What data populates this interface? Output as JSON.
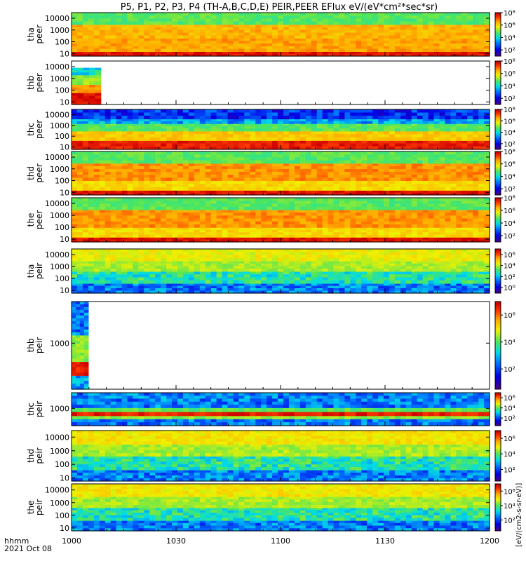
{
  "title": "P5, P1, P2, P3, P4 (TH-A,B,C,D,E) PEIR,PEER EFlux eV/(eV*cm²*sec*sr)",
  "colorbar_unit": "[eV/(cm2-s-sr-eV)]",
  "x_axis": {
    "label_lines": [
      "hhmm",
      "2021 Oct 08"
    ],
    "ticks": [
      "1000",
      "1030",
      "1100",
      "1130",
      "1200"
    ]
  },
  "chart_data": [
    {
      "type": "heatmap",
      "probe": "tha",
      "species": "peer",
      "ylabel": [
        "tha",
        "peer"
      ],
      "yscale": "log",
      "ylim": [
        6,
        30000
      ],
      "yticks": [
        "10",
        "100",
        "1000",
        "10000"
      ],
      "colorbar_ticks": [
        "10²",
        "10⁴",
        "10⁶",
        "10⁸"
      ],
      "colorbar_log_range": [
        1,
        8
      ],
      "xlim": [
        "10:00",
        "12:00"
      ],
      "coverage": [
        0,
        1
      ],
      "feature": "dense high flux (orange) across all energies; saturated red band below ~15 eV",
      "bands": [
        {
          "from": 6,
          "to": 15,
          "level": 0.97
        },
        {
          "from": 15,
          "to": 200,
          "level": 0.8
        },
        {
          "from": 200,
          "to": 3000,
          "level": 0.78
        },
        {
          "from": 3000,
          "to": 30000,
          "level": 0.55
        }
      ]
    },
    {
      "type": "heatmap",
      "probe": "thb",
      "species": "peer",
      "ylabel": [
        "thb",
        "peer"
      ],
      "yscale": "log",
      "ylim": [
        6,
        30000
      ],
      "yticks": [
        "10",
        "100",
        "1000",
        "10000"
      ],
      "colorbar_ticks": [
        "10²",
        "10⁴",
        "10⁶",
        "10⁸"
      ],
      "colorbar_log_range": [
        1,
        8
      ],
      "xlim": [
        "10:00",
        "12:00"
      ],
      "coverage": [
        0,
        0.07
      ],
      "feature": "data only from 10:00 to ~10:08",
      "bands": [
        {
          "from": 6,
          "to": 60,
          "level": 0.98
        },
        {
          "from": 60,
          "to": 300,
          "level": 0.82
        },
        {
          "from": 300,
          "to": 2000,
          "level": 0.6
        },
        {
          "from": 2000,
          "to": 8000,
          "level": 0.45
        }
      ]
    },
    {
      "type": "heatmap",
      "probe": "thc",
      "species": "peer",
      "ylabel": [
        "thc",
        "peer"
      ],
      "yscale": "log",
      "ylim": [
        6,
        30000
      ],
      "yticks": [
        "10",
        "100",
        "1000",
        "10000"
      ],
      "colorbar_ticks": [
        "10²",
        "10⁴",
        "10⁶",
        "10⁸"
      ],
      "colorbar_log_range": [
        1,
        8
      ],
      "xlim": [
        "10:00",
        "12:00"
      ],
      "coverage": [
        0,
        1
      ],
      "feature": "red at low energy grading to noisy blue above ~3000 eV",
      "bands": [
        {
          "from": 6,
          "to": 40,
          "level": 0.95
        },
        {
          "from": 40,
          "to": 300,
          "level": 0.75
        },
        {
          "from": 300,
          "to": 1500,
          "level": 0.55
        },
        {
          "from": 1500,
          "to": 4000,
          "level": 0.35
        },
        {
          "from": 4000,
          "to": 30000,
          "level": 0.2
        }
      ]
    },
    {
      "type": "heatmap",
      "probe": "thd",
      "species": "peer",
      "ylabel": [
        "thd",
        "peer"
      ],
      "yscale": "log",
      "ylim": [
        6,
        30000
      ],
      "yticks": [
        "10",
        "100",
        "1000",
        "10000"
      ],
      "colorbar_ticks": [
        "10²",
        "10⁴",
        "10⁶",
        "10⁸"
      ],
      "colorbar_log_range": [
        1,
        8
      ],
      "xlim": [
        "10:00",
        "12:00"
      ],
      "coverage": [
        0,
        1
      ],
      "feature": "orange/red flux 100-5000 eV; saturated band below ~15 eV",
      "bands": [
        {
          "from": 6,
          "to": 15,
          "level": 0.97
        },
        {
          "from": 15,
          "to": 100,
          "level": 0.72
        },
        {
          "from": 100,
          "to": 3000,
          "level": 0.82
        },
        {
          "from": 3000,
          "to": 30000,
          "level": 0.55
        }
      ]
    },
    {
      "type": "heatmap",
      "probe": "the",
      "species": "peer",
      "ylabel": [
        "the",
        "peer"
      ],
      "yscale": "log",
      "ylim": [
        6,
        30000
      ],
      "yticks": [
        "10",
        "100",
        "1000",
        "10000"
      ],
      "colorbar_ticks": [
        "10²",
        "10⁴",
        "10⁶",
        "10⁸"
      ],
      "colorbar_log_range": [
        1,
        8
      ],
      "xlim": [
        "10:00",
        "12:00"
      ],
      "coverage": [
        0,
        1
      ],
      "feature": "orange/red flux 100-5000 eV; saturated band below ~15 eV",
      "bands": [
        {
          "from": 6,
          "to": 15,
          "level": 0.97
        },
        {
          "from": 15,
          "to": 100,
          "level": 0.72
        },
        {
          "from": 100,
          "to": 3000,
          "level": 0.82
        },
        {
          "from": 3000,
          "to": 30000,
          "level": 0.55
        }
      ]
    },
    {
      "type": "heatmap",
      "probe": "tha",
      "species": "peir",
      "ylabel": [
        "tha",
        "peir"
      ],
      "yscale": "log",
      "ylim": [
        6,
        30000
      ],
      "yticks": [
        "10",
        "100",
        "1000",
        "10000"
      ],
      "colorbar_ticks": [
        "10⁰",
        "10²",
        "10⁴",
        "10⁶"
      ],
      "colorbar_log_range": [
        -1,
        7
      ],
      "xlim": [
        "10:00",
        "12:00"
      ],
      "coverage": [
        0,
        1
      ],
      "feature": "yellow-green flux peaking ~1000-10000 eV; noisy below 100 eV",
      "bands": [
        {
          "from": 6,
          "to": 40,
          "level": 0.3
        },
        {
          "from": 40,
          "to": 400,
          "level": 0.48
        },
        {
          "from": 400,
          "to": 3000,
          "level": 0.62
        },
        {
          "from": 3000,
          "to": 30000,
          "level": 0.68
        }
      ]
    },
    {
      "type": "heatmap",
      "probe": "thb",
      "species": "peir",
      "ylabel": [
        "thb",
        "peir"
      ],
      "yscale": "log",
      "ylim": [
        100,
        8000
      ],
      "yticks": [
        "1000"
      ],
      "colorbar_ticks": [
        "10²",
        "10⁴",
        "10⁶"
      ],
      "colorbar_log_range": [
        0.5,
        7
      ],
      "xlim": [
        "10:00",
        "12:00"
      ],
      "coverage": [
        0,
        0.04
      ],
      "feature": "data only from 10:00 to ~10:05",
      "bands": [
        {
          "from": 100,
          "to": 200,
          "level": 0.35
        },
        {
          "from": 200,
          "to": 400,
          "level": 0.95
        },
        {
          "from": 400,
          "to": 1500,
          "level": 0.6
        },
        {
          "from": 1500,
          "to": 8000,
          "level": 0.3
        }
      ]
    },
    {
      "type": "heatmap",
      "probe": "thc",
      "species": "peir",
      "ylabel": [
        "thc",
        "peir"
      ],
      "yscale": "log",
      "ylim": [
        100,
        8000
      ],
      "yticks": [
        "1000"
      ],
      "colorbar_ticks": [
        "10²",
        "10⁴",
        "10⁶"
      ],
      "colorbar_log_range": [
        0.5,
        7
      ],
      "xlim": [
        "10:00",
        "12:00"
      ],
      "coverage": [
        0,
        1
      ],
      "feature": "narrow saturated red band near ~500 eV; blue elsewhere",
      "bands": [
        {
          "from": 100,
          "to": 250,
          "level": 0.3
        },
        {
          "from": 250,
          "to": 380,
          "level": 0.6
        },
        {
          "from": 380,
          "to": 650,
          "level": 0.95
        },
        {
          "from": 650,
          "to": 1100,
          "level": 0.55
        },
        {
          "from": 1100,
          "to": 8000,
          "level": 0.3
        }
      ]
    },
    {
      "type": "heatmap",
      "probe": "thd",
      "species": "peir",
      "ylabel": [
        "thd",
        "peir"
      ],
      "yscale": "log",
      "ylim": [
        6,
        30000
      ],
      "yticks": [
        "10",
        "100",
        "1000",
        "10000"
      ],
      "colorbar_ticks": [
        "10²",
        "10⁴",
        "10⁶"
      ],
      "colorbar_log_range": [
        0.5,
        7
      ],
      "xlim": [
        "10:00",
        "12:00"
      ],
      "coverage": [
        0,
        1
      ],
      "feature": "yellow flux peaking near ~5000 eV; noisy below 100 eV",
      "bands": [
        {
          "from": 6,
          "to": 40,
          "level": 0.3
        },
        {
          "from": 40,
          "to": 400,
          "level": 0.48
        },
        {
          "from": 400,
          "to": 3000,
          "level": 0.62
        },
        {
          "from": 3000,
          "to": 30000,
          "level": 0.7
        }
      ]
    },
    {
      "type": "heatmap",
      "probe": "the",
      "species": "peir",
      "ylabel": [
        "the",
        "peir"
      ],
      "yscale": "log",
      "ylim": [
        6,
        30000
      ],
      "yticks": [
        "10",
        "100",
        "1000",
        "10000"
      ],
      "colorbar_ticks": [
        "10²",
        "10⁴",
        "10⁶"
      ],
      "colorbar_log_range": [
        0.5,
        7
      ],
      "xlim": [
        "10:00",
        "12:00"
      ],
      "coverage": [
        0,
        1
      ],
      "feature": "yellow flux peaking near ~5000 eV; noisy below 100 eV",
      "bands": [
        {
          "from": 6,
          "to": 40,
          "level": 0.3
        },
        {
          "from": 40,
          "to": 400,
          "level": 0.48
        },
        {
          "from": 400,
          "to": 3000,
          "level": 0.62
        },
        {
          "from": 3000,
          "to": 30000,
          "level": 0.7
        }
      ]
    }
  ]
}
